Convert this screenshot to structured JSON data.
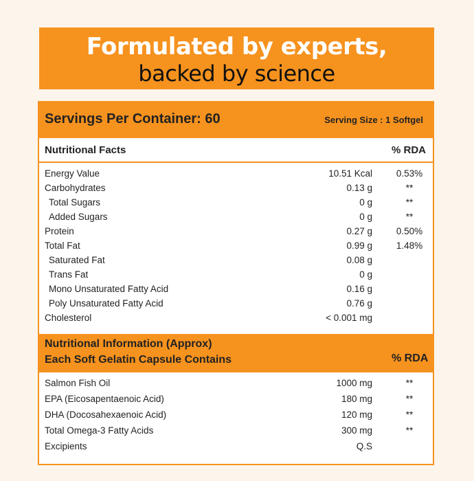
{
  "header": {
    "line1": "Formulated by experts,",
    "line2": "backed by science"
  },
  "serving": {
    "servings": "Servings Per Container: 60",
    "size": "Serving Size : 1 Softgel"
  },
  "facts": {
    "title": "Nutritional Facts",
    "rda_header": "% RDA",
    "rows": [
      {
        "name": "Energy Value",
        "amount": "10.51 Kcal",
        "rda": "0.53%"
      },
      {
        "name": "Carbohydrates",
        "amount": "0.13 g",
        "rda": "**"
      },
      {
        "name": "Total Sugars",
        "amount": "0 g",
        "rda": "**",
        "sub": true
      },
      {
        "name": "Added Sugars",
        "amount": "0 g",
        "rda": "**",
        "sub": true
      },
      {
        "name": "Protein",
        "amount": "0.27 g",
        "rda": "0.50%"
      },
      {
        "name": "Total Fat",
        "amount": "0.99 g",
        "rda": "1.48%"
      },
      {
        "name": "Saturated Fat",
        "amount": "0.08 g",
        "sub": true
      },
      {
        "name": "Trans Fat",
        "amount": "0 g",
        "sub": true
      },
      {
        "name": "Mono Unsaturated Fatty Acid",
        "amount": "0.16 g",
        "sub": true
      },
      {
        "name": "Poly Unsaturated Fatty Acid",
        "amount": "0.76 g",
        "sub": true
      },
      {
        "name": "Cholesterol",
        "amount": "< 0.001 mg"
      }
    ]
  },
  "info": {
    "title_line1": "Nutritional Information (Approx)",
    "title_line2": "Each Soft Gelatin Capsule Contains",
    "rda_header": "% RDA",
    "rows": [
      {
        "name": "Salmon Fish Oil",
        "amount": "1000 mg",
        "rda": "**"
      },
      {
        "name": "EPA (Eicosapentaenoic Acid)",
        "amount": "180 mg",
        "rda": "**"
      },
      {
        "name": "DHA (Docosahexaenoic Acid)",
        "amount": "120 mg",
        "rda": "**"
      },
      {
        "name": "Total Omega-3 Fatty Acids",
        "amount": "300 mg",
        "rda": "**"
      },
      {
        "name": "Excipients",
        "amount": "Q.S"
      }
    ]
  }
}
